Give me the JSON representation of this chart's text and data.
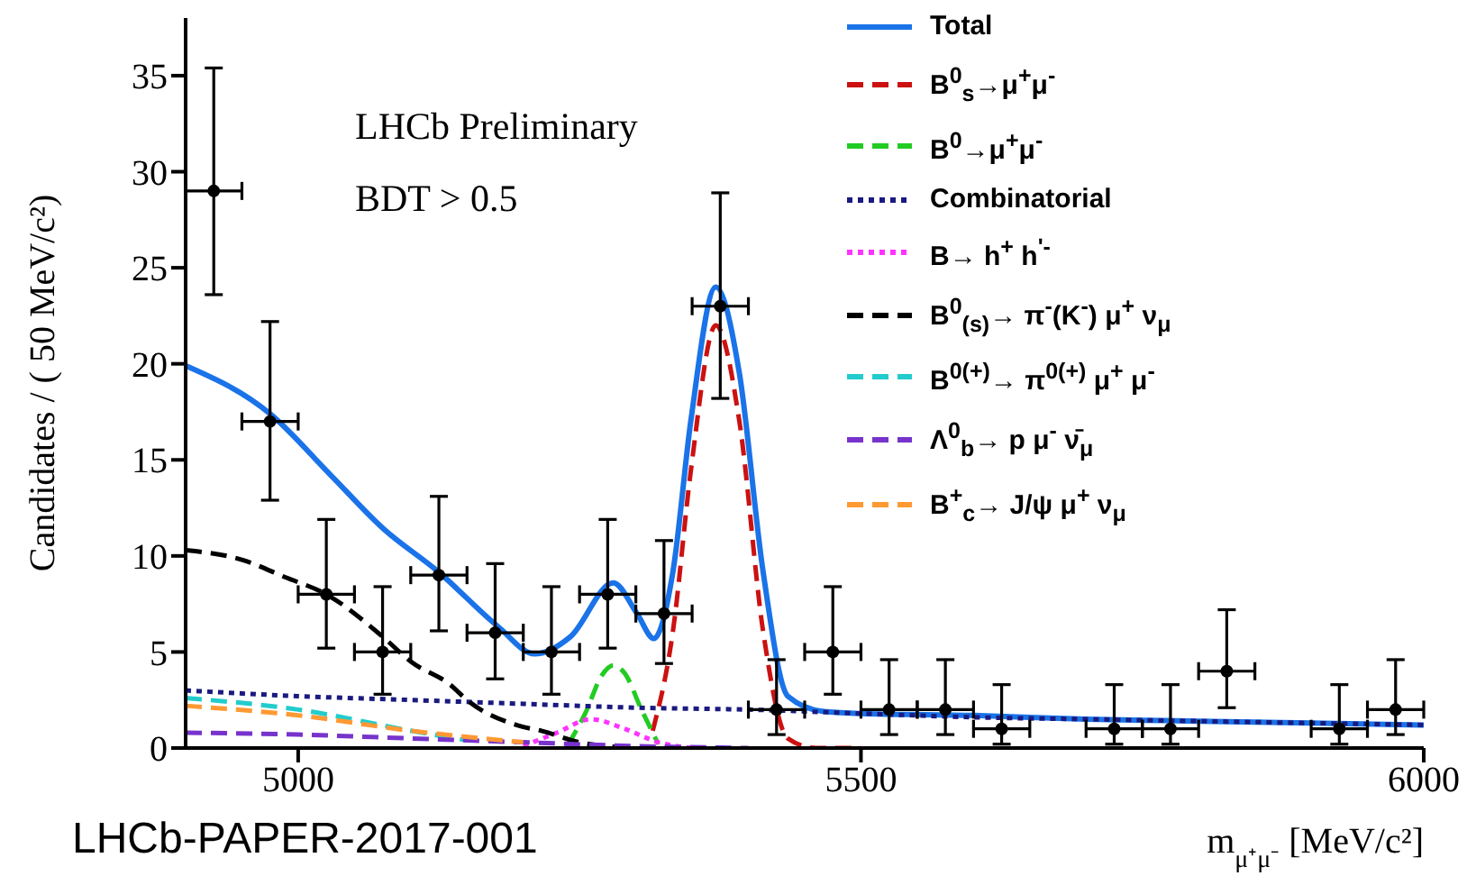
{
  "chart_data": {
    "type": "line",
    "xlabel": "m$_{μ⁺μ⁻}$ [MeV/c²]",
    "ylabel": "Candidates / ( 50 MeV/c²)",
    "annotations": [
      "LHCb Preliminary",
      "BDT > 0.5",
      "LHCb-PAPER-2017-001"
    ],
    "xlim": [
      4900,
      6000
    ],
    "xticks": [
      5000,
      5500,
      6000
    ],
    "ylim": [
      0,
      38
    ],
    "yticks": [
      0,
      5,
      10,
      15,
      20,
      25,
      30,
      35
    ],
    "grid": false,
    "legend": "top right",
    "series": [
      {
        "type": "scatter",
        "color": "#000000",
        "marker": "circle",
        "x": [
          4925,
          4975,
          5025,
          5075,
          5125,
          5175,
          5225,
          5275,
          5325,
          5375,
          5425,
          5475,
          5525,
          5575,
          5625,
          5675,
          5725,
          5775,
          5825,
          5875,
          5925,
          5975
        ],
        "values": [
          29,
          17,
          8,
          5,
          9,
          6,
          5,
          8,
          7,
          23,
          2,
          5,
          2,
          2,
          1,
          null,
          1,
          1,
          4,
          null,
          1,
          2
        ],
        "errors": [
          [
            23.6,
            35.4
          ],
          [
            12.9,
            22.2
          ],
          [
            5.2,
            11.9
          ],
          [
            2.8,
            8.4
          ],
          [
            6.1,
            13.1
          ],
          [
            3.6,
            9.6
          ],
          [
            2.8,
            8.4
          ],
          [
            5.2,
            11.9
          ],
          [
            4.4,
            10.8
          ],
          [
            18.2,
            28.9
          ],
          [
            0.7,
            4.6
          ],
          [
            2.8,
            8.4
          ],
          [
            0.7,
            4.6
          ],
          [
            0.7,
            4.6
          ],
          [
            0.2,
            3.3
          ],
          null,
          [
            0.2,
            3.3
          ],
          [
            0.2,
            3.3
          ],
          [
            2.1,
            7.2
          ],
          null,
          [
            0.2,
            3.3
          ],
          [
            0.7,
            4.6
          ]
        ],
        "xerrors": [
          25,
          25,
          25,
          25,
          25,
          25,
          25,
          25,
          25,
          25,
          25,
          25,
          25,
          25,
          25,
          null,
          25,
          25,
          25,
          null,
          25,
          25
        ]
      },
      {
        "name": "Total",
        "color": "#1a73e8",
        "line_style": "solid",
        "x": [
          4900,
          4975,
          5029,
          5076,
          5124,
          5178,
          5210,
          5242,
          5280,
          5301,
          5316,
          5333,
          5349,
          5371,
          5392,
          5413,
          5435,
          5467,
          5500,
          5600,
          5700,
          5800,
          5900,
          6000
        ],
        "values": [
          19.9,
          17.4,
          14.2,
          11.4,
          9.2,
          6.3,
          4.9,
          5.8,
          8.6,
          7.0,
          5.7,
          9.2,
          17.1,
          24.0,
          19.5,
          9.2,
          2.7,
          1.9,
          1.8,
          1.7,
          1.5,
          1.4,
          1.3,
          1.2
        ]
      },
      {
        "name": "B$^{0}$$_{s}$→μ$^{+}$μ$^{-}$",
        "color": "#cc1111",
        "line_style": "dashed",
        "x": [
          5315,
          5333,
          5349,
          5371,
          5392,
          5413,
          5435,
          5460,
          5500
        ],
        "values": [
          0.9,
          6.1,
          14.5,
          22.0,
          17.0,
          6.1,
          0.5,
          0,
          0
        ]
      },
      {
        "name": "B$^{0}$→μ$^{+}$μ$^{-}$",
        "color": "#22cc22",
        "line_style": "dashed",
        "x": [
          5240,
          5255,
          5270,
          5280,
          5290,
          5305,
          5320
        ],
        "values": [
          0.2,
          1.8,
          3.8,
          4.3,
          3.9,
          2.0,
          0.2
        ]
      },
      {
        "name": "Combinatorial",
        "color": "#1a1a80",
        "line_style": "dotted",
        "x": [
          4900,
          5000,
          5100,
          5200,
          5300,
          5400,
          5500,
          5600,
          5700,
          5800,
          5900,
          6000
        ],
        "values": [
          3.0,
          2.7,
          2.5,
          2.3,
          2.1,
          2.0,
          1.8,
          1.6,
          1.5,
          1.4,
          1.3,
          1.2
        ]
      },
      {
        "name": "B→ h$^{+}$ h$^{'-}$",
        "color": "#ff33ff",
        "line_style": "dotted",
        "x": [
          5200,
          5230,
          5260,
          5290,
          5320,
          5350
        ],
        "values": [
          0.1,
          0.8,
          1.5,
          1.0,
          0.3,
          0
        ]
      },
      {
        "name": "B$^{0}$$_{(s)}$→ π$^{-}$(K$^{-}$) μ$^{+}$ ν$_{μ}$",
        "color": "#000000",
        "line_style": "dashed",
        "x": [
          4900,
          4950,
          4988,
          5025,
          5075,
          5100,
          5135,
          5150,
          5200,
          5216,
          5250,
          5300
        ],
        "values": [
          10.3,
          9.8,
          8.9,
          8.0,
          5.8,
          4.5,
          3.3,
          2.5,
          1.1,
          0.9,
          0.3,
          0
        ]
      },
      {
        "name": "B$^{0(+)}$→ π$^{0(+)}$ μ$^{+}$ μ$^{-}$",
        "color": "#22cccc",
        "line_style": "dashed",
        "x": [
          4900,
          5000,
          5100,
          5150
        ],
        "values": [
          2.6,
          2.0,
          0.9,
          0.4
        ]
      },
      {
        "name": "Λ$^{0}$$_{b}$→ p μ$^{-}$ ν̄$_{μ}$",
        "color": "#7733cc",
        "line_style": "dashed",
        "x": [
          4900,
          5000,
          5100,
          5200,
          5300,
          5400
        ],
        "values": [
          0.8,
          0.7,
          0.5,
          0.3,
          0.1,
          0
        ]
      },
      {
        "name": "B$^{+}$$_{c}$→ J/ψ μ$^{+}$ ν$_{μ}$",
        "color": "#ff9933",
        "line_style": "dashed",
        "x": [
          4900,
          5000,
          5100,
          5200
        ],
        "values": [
          2.2,
          1.7,
          0.9,
          0.3
        ]
      }
    ]
  }
}
